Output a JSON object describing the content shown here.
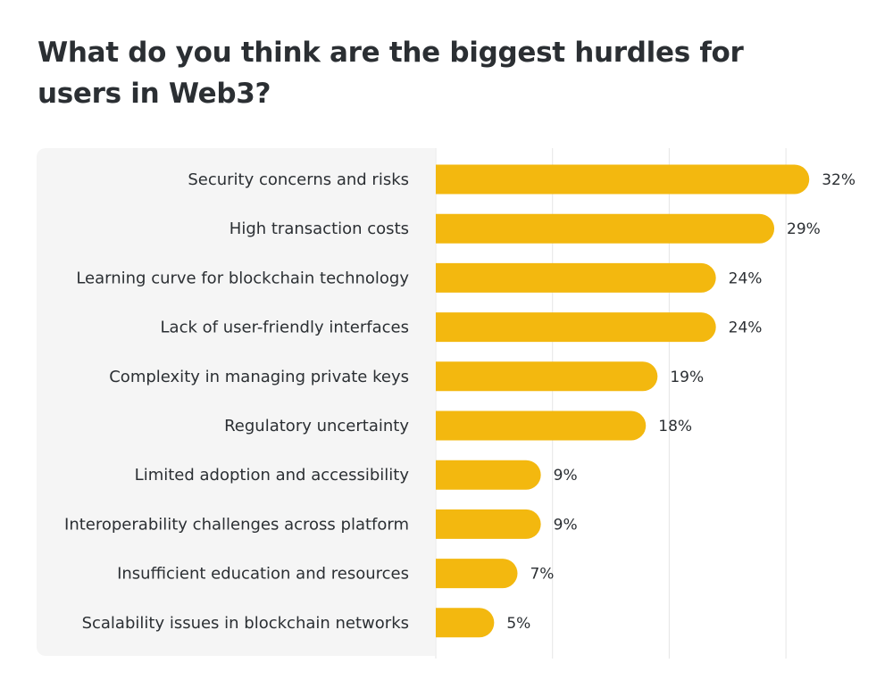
{
  "title": "What do you think are the biggest hurdles for users in Web3?",
  "colors": {
    "bar": "#f3b80f",
    "grid": "#e6e6e6",
    "panel": "#f5f5f5",
    "text": "#2b2f33"
  },
  "chart_data": {
    "type": "bar",
    "orientation": "horizontal",
    "title": "What do you think are the biggest hurdles for users in Web3?",
    "xlabel": "",
    "ylabel": "",
    "unit": "%",
    "xlim": [
      0,
      35
    ],
    "grid": true,
    "legend": "none",
    "categories": [
      "Security concerns and risks",
      "High transaction costs",
      "Learning curve for blockchain technology",
      "Lack of user-friendly interfaces",
      "Complexity in managing private keys",
      "Regulatory uncertainty",
      "Limited adoption and accessibility",
      "Interoperability challenges across platform",
      "Insufficient education and resources",
      "Scalability issues in blockchain networks"
    ],
    "values": [
      32,
      29,
      24,
      24,
      19,
      18,
      9,
      9,
      7,
      5
    ],
    "value_labels": [
      "32%",
      "29%",
      "24%",
      "24%",
      "19%",
      "18%",
      "9%",
      "9%",
      "7%",
      "5%"
    ]
  }
}
